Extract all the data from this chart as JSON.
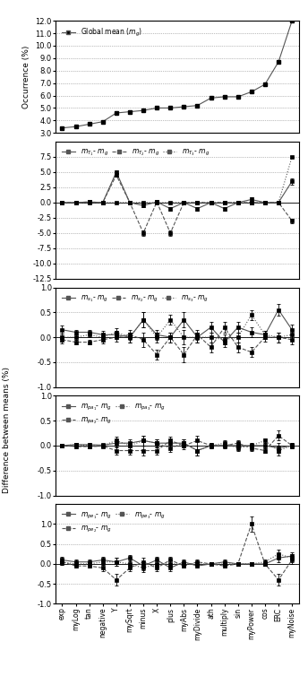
{
  "x_labels": [
    "exp",
    "myLog",
    "tan",
    "negative",
    "Y",
    "mySqrt",
    "minus",
    "X",
    "plus",
    "myAbs",
    "myDivide",
    "ath",
    "multiply",
    "sin",
    "myPower",
    "cos",
    "ERC",
    "myNoise"
  ],
  "n": 18,
  "global_mean": [
    3.4,
    3.5,
    3.7,
    3.9,
    4.6,
    4.7,
    4.8,
    5.0,
    5.0,
    5.1,
    5.2,
    5.8,
    5.9,
    5.9,
    6.3,
    6.9,
    8.7,
    12.0
  ],
  "panel1_ylim": [
    3.0,
    12.0
  ],
  "panel1_yticks": [
    3.0,
    4.0,
    5.0,
    6.0,
    7.0,
    8.0,
    9.0,
    10.0,
    11.0,
    12.0
  ],
  "mT1": [
    0.0,
    0.0,
    0.1,
    0.0,
    5.0,
    0.0,
    -0.5,
    0.1,
    -1.0,
    0.0,
    -1.0,
    0.0,
    -1.0,
    0.0,
    0.5,
    0.0,
    0.0,
    3.5
  ],
  "mT2": [
    0.0,
    0.0,
    0.1,
    0.0,
    4.5,
    0.0,
    -5.0,
    0.1,
    -5.0,
    0.0,
    0.0,
    0.0,
    0.0,
    0.0,
    0.0,
    0.0,
    0.0,
    -3.0
  ],
  "mT3": [
    0.0,
    0.0,
    0.0,
    0.0,
    0.0,
    0.0,
    0.0,
    0.0,
    0.0,
    0.0,
    0.0,
    0.0,
    0.0,
    0.0,
    0.0,
    0.0,
    0.0,
    7.5
  ],
  "mT1_err": [
    0.05,
    0.05,
    0.05,
    0.05,
    0.3,
    0.05,
    0.3,
    0.05,
    0.3,
    0.05,
    0.3,
    0.05,
    0.3,
    0.05,
    0.3,
    0.05,
    0.1,
    0.5
  ],
  "mT2_err": [
    0.05,
    0.05,
    0.05,
    0.05,
    0.3,
    0.05,
    0.4,
    0.05,
    0.4,
    0.05,
    0.3,
    0.05,
    0.3,
    0.05,
    0.3,
    0.05,
    0.1,
    0.4
  ],
  "mT3_err": [
    0.05,
    0.05,
    0.05,
    0.05,
    0.05,
    0.05,
    0.05,
    0.05,
    0.05,
    0.05,
    0.05,
    0.05,
    0.05,
    0.05,
    0.05,
    0.05,
    0.05,
    0.2
  ],
  "panel2_ylim": [
    -12.5,
    10.0
  ],
  "panel2_yticks": [
    -12.5,
    -10.0,
    -7.5,
    -5.0,
    -2.5,
    0.0,
    2.5,
    5.0,
    7.5
  ],
  "mS1": [
    0.15,
    0.1,
    0.1,
    0.05,
    0.05,
    0.0,
    0.35,
    0.05,
    0.0,
    0.35,
    0.0,
    0.2,
    -0.1,
    0.2,
    0.1,
    0.05,
    0.55,
    0.15
  ],
  "mS2": [
    -0.05,
    -0.1,
    -0.1,
    -0.05,
    0.0,
    0.05,
    -0.05,
    -0.35,
    0.0,
    -0.35,
    0.05,
    -0.2,
    0.2,
    -0.2,
    -0.3,
    -0.0,
    -0.0,
    -0.05
  ],
  "mS3": [
    0.0,
    0.0,
    0.05,
    0.0,
    0.1,
    0.0,
    0.35,
    0.0,
    0.35,
    0.0,
    0.0,
    0.0,
    -0.05,
    0.0,
    0.45,
    0.05,
    0.0,
    0.05
  ],
  "mS1_err": [
    0.08,
    0.05,
    0.05,
    0.08,
    0.08,
    0.1,
    0.15,
    0.1,
    0.1,
    0.15,
    0.1,
    0.1,
    0.1,
    0.1,
    0.1,
    0.08,
    0.12,
    0.1
  ],
  "mS2_err": [
    0.08,
    0.05,
    0.05,
    0.08,
    0.08,
    0.1,
    0.15,
    0.1,
    0.1,
    0.15,
    0.1,
    0.1,
    0.1,
    0.1,
    0.1,
    0.08,
    0.1,
    0.1
  ],
  "mS3_err": [
    0.08,
    0.05,
    0.05,
    0.08,
    0.08,
    0.1,
    0.15,
    0.1,
    0.1,
    0.15,
    0.1,
    0.1,
    0.1,
    0.1,
    0.1,
    0.08,
    0.1,
    0.1
  ],
  "panel3_ylim": [
    -1.0,
    1.0
  ],
  "panel3_yticks": [
    -1.0,
    -0.5,
    0.0,
    0.5,
    1.0
  ],
  "mPa1": [
    0.0,
    0.02,
    0.02,
    0.01,
    0.05,
    0.05,
    0.1,
    0.05,
    0.05,
    0.05,
    -0.1,
    0.0,
    0.0,
    0.0,
    0.0,
    0.0,
    -0.05,
    0.0
  ],
  "mPa2": [
    0.0,
    -0.02,
    -0.02,
    -0.01,
    -0.1,
    -0.1,
    -0.1,
    -0.1,
    0.1,
    0.0,
    0.1,
    0.0,
    0.0,
    0.05,
    -0.05,
    -0.1,
    0.2,
    0.0
  ],
  "mPa3": [
    0.0,
    0.02,
    0.0,
    0.0,
    0.1,
    0.0,
    0.1,
    0.05,
    -0.05,
    0.05,
    -0.1,
    0.0,
    0.05,
    -0.05,
    0.0,
    0.1,
    -0.1,
    0.0
  ],
  "mPa1_err": [
    0.03,
    0.03,
    0.03,
    0.03,
    0.08,
    0.08,
    0.1,
    0.08,
    0.08,
    0.08,
    0.1,
    0.05,
    0.05,
    0.05,
    0.05,
    0.05,
    0.1,
    0.05
  ],
  "mPa2_err": [
    0.03,
    0.03,
    0.03,
    0.03,
    0.08,
    0.08,
    0.1,
    0.08,
    0.08,
    0.08,
    0.1,
    0.05,
    0.05,
    0.05,
    0.05,
    0.05,
    0.1,
    0.05
  ],
  "mPa3_err": [
    0.03,
    0.03,
    0.03,
    0.03,
    0.08,
    0.08,
    0.1,
    0.08,
    0.08,
    0.08,
    0.1,
    0.05,
    0.05,
    0.05,
    0.05,
    0.05,
    0.1,
    0.05
  ],
  "panel4_ylim": [
    -1.0,
    1.0
  ],
  "panel4_yticks": [
    -1.0,
    -0.5,
    0.0,
    0.5,
    1.0
  ],
  "mPe1": [
    0.1,
    0.05,
    0.05,
    0.1,
    0.05,
    0.15,
    -0.05,
    0.1,
    -0.1,
    0.05,
    -0.05,
    0.0,
    0.05,
    0.0,
    0.0,
    0.0,
    0.15,
    0.2
  ],
  "mPe2": [
    0.05,
    -0.05,
    -0.05,
    -0.1,
    -0.4,
    -0.1,
    0.05,
    -0.1,
    0.1,
    -0.05,
    0.05,
    0.0,
    -0.05,
    0.0,
    1.0,
    0.0,
    -0.4,
    0.1
  ],
  "mPe3": [
    0.05,
    0.0,
    0.0,
    0.05,
    0.05,
    0.0,
    -0.1,
    0.0,
    0.0,
    0.0,
    0.0,
    0.0,
    0.0,
    0.0,
    0.0,
    0.05,
    0.25,
    0.15
  ],
  "mPe1_err": [
    0.08,
    0.05,
    0.05,
    0.08,
    0.1,
    0.08,
    0.1,
    0.08,
    0.08,
    0.05,
    0.05,
    0.05,
    0.05,
    0.05,
    0.05,
    0.05,
    0.1,
    0.1
  ],
  "mPe2_err": [
    0.08,
    0.05,
    0.05,
    0.08,
    0.15,
    0.08,
    0.1,
    0.08,
    0.08,
    0.05,
    0.05,
    0.05,
    0.05,
    0.05,
    0.2,
    0.05,
    0.15,
    0.1
  ],
  "mPe3_err": [
    0.08,
    0.05,
    0.05,
    0.08,
    0.1,
    0.08,
    0.1,
    0.08,
    0.08,
    0.05,
    0.05,
    0.05,
    0.05,
    0.05,
    0.05,
    0.05,
    0.1,
    0.1
  ],
  "panel5_ylim": [
    -1.0,
    1.5
  ],
  "panel5_yticks": [
    -1.0,
    -0.5,
    0.0,
    0.5,
    1.0
  ],
  "color_solid": "#555555",
  "color_dashed": "#555555",
  "color_dotted": "#555555"
}
